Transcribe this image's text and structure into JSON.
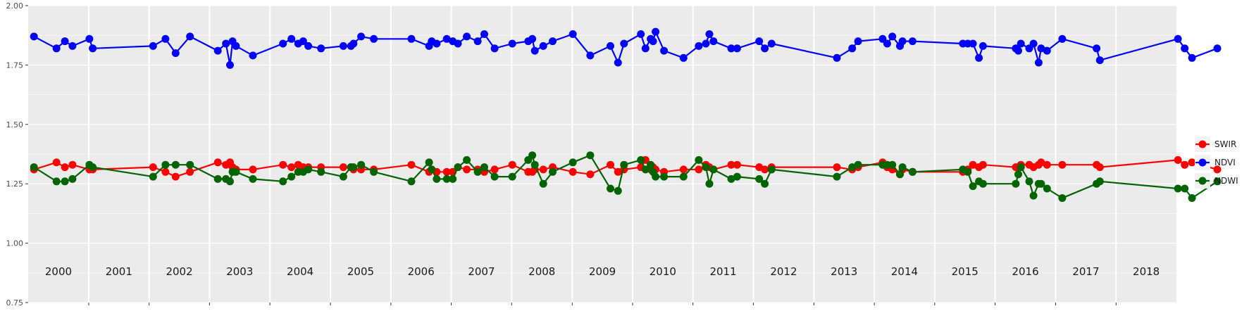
{
  "chart_data": {
    "type": "line",
    "title": "",
    "xlabel": "",
    "ylabel": "",
    "ylim": [
      0.75,
      2.0
    ],
    "xlim": [
      "2000-01-01",
      "2018-12-31"
    ],
    "y_ticks": [
      "0.75",
      "1.00",
      "1.25",
      "1.50",
      "1.75",
      "2.00"
    ],
    "year_labels": [
      "2000",
      "2001",
      "2002",
      "2003",
      "2004",
      "2005",
      "2006",
      "2007",
      "2008",
      "2009",
      "2010",
      "2011",
      "2012",
      "2013",
      "2014",
      "2015",
      "2016",
      "2017",
      "2018"
    ],
    "grid": true,
    "legend_position": "right",
    "colors": {
      "SWIR": "#ff0000",
      "NDVI": "#0000ff",
      "NDWI": "#006400",
      "panel": "#ebebeb"
    },
    "series": [
      {
        "name": "SWIR",
        "x": [
          "2000-02-05",
          "2000-06-20",
          "2000-08-10",
          "2000-09-25",
          "2001-01-05",
          "2001-01-25",
          "2002-01-25",
          "2002-04-10",
          "2002-06-10",
          "2002-09-05",
          "2003-02-20",
          "2003-04-10",
          "2003-05-05",
          "2003-05-20",
          "2003-06-10",
          "2003-09-20",
          "2004-03-20",
          "2004-05-10",
          "2004-06-20",
          "2004-07-20",
          "2004-08-20",
          "2004-11-05",
          "2005-03-20",
          "2005-05-05",
          "2005-05-20",
          "2005-07-05",
          "2005-09-20",
          "2006-05-05",
          "2006-08-20",
          "2006-09-05",
          "2006-10-05",
          "2006-12-05",
          "2007-01-10",
          "2007-02-10",
          "2007-04-05",
          "2007-06-10",
          "2007-07-20",
          "2007-09-20",
          "2008-01-05",
          "2008-04-10",
          "2008-05-05",
          "2008-05-20",
          "2008-07-10",
          "2008-09-05",
          "2009-01-05",
          "2009-04-20",
          "2009-08-20",
          "2009-10-05",
          "2009-11-10",
          "2010-02-20",
          "2010-03-20",
          "2010-04-20",
          "2010-05-05",
          "2010-05-20",
          "2010-07-10",
          "2010-11-05",
          "2011-02-05",
          "2011-03-20",
          "2011-04-10",
          "2011-05-05",
          "2011-08-20",
          "2011-09-25",
          "2012-02-05",
          "2012-03-10",
          "2012-04-20",
          "2013-05-20",
          "2013-08-20",
          "2013-09-25",
          "2014-02-20",
          "2014-03-20",
          "2014-04-20",
          "2014-06-05",
          "2014-06-20",
          "2014-08-20",
          "2015-06-20",
          "2015-07-20",
          "2015-08-20",
          "2015-09-25",
          "2015-10-20",
          "2016-05-05",
          "2016-05-20",
          "2016-06-05",
          "2016-07-25",
          "2016-08-20",
          "2016-09-20",
          "2016-10-05",
          "2016-11-10",
          "2017-02-10",
          "2017-09-05",
          "2017-09-25",
          "2019-01-10",
          "2019-02-20",
          "2019-04-05",
          "2019-09-05"
        ],
        "values": [
          1.31,
          1.34,
          1.32,
          1.33,
          1.31,
          1.31,
          1.32,
          1.3,
          1.28,
          1.3,
          1.34,
          1.33,
          1.34,
          1.32,
          1.31,
          1.31,
          1.33,
          1.32,
          1.33,
          1.32,
          1.32,
          1.32,
          1.32,
          1.32,
          1.31,
          1.31,
          1.31,
          1.33,
          1.3,
          1.31,
          1.3,
          1.3,
          1.3,
          1.32,
          1.31,
          1.31,
          1.3,
          1.31,
          1.33,
          1.3,
          1.3,
          1.31,
          1.31,
          1.32,
          1.3,
          1.29,
          1.33,
          1.3,
          1.31,
          1.32,
          1.35,
          1.31,
          1.32,
          1.31,
          1.3,
          1.31,
          1.31,
          1.33,
          1.32,
          1.31,
          1.33,
          1.33,
          1.32,
          1.31,
          1.32,
          1.32,
          1.31,
          1.32,
          1.34,
          1.32,
          1.31,
          1.29,
          1.31,
          1.3,
          1.3,
          1.31,
          1.33,
          1.32,
          1.33,
          1.32,
          1.32,
          1.33,
          1.33,
          1.32,
          1.33,
          1.34,
          1.33,
          1.33,
          1.33,
          1.32,
          1.35,
          1.33,
          1.34,
          1.31
        ]
      },
      {
        "name": "NDVI",
        "x": [
          "2000-02-05",
          "2000-06-20",
          "2000-08-10",
          "2000-09-25",
          "2001-01-05",
          "2001-01-25",
          "2002-01-25",
          "2002-04-10",
          "2002-06-10",
          "2002-09-05",
          "2003-02-20",
          "2003-04-10",
          "2003-05-05",
          "2003-05-20",
          "2003-06-10",
          "2003-09-20",
          "2004-03-20",
          "2004-05-10",
          "2004-06-20",
          "2004-07-20",
          "2004-08-20",
          "2004-11-05",
          "2005-03-20",
          "2005-05-05",
          "2005-05-20",
          "2005-07-05",
          "2005-09-20",
          "2006-05-05",
          "2006-08-20",
          "2006-09-05",
          "2006-10-05",
          "2006-12-05",
          "2007-01-10",
          "2007-02-10",
          "2007-04-05",
          "2007-06-10",
          "2007-07-20",
          "2007-09-20",
          "2008-01-05",
          "2008-04-10",
          "2008-05-05",
          "2008-05-20",
          "2008-07-10",
          "2008-09-05",
          "2009-01-05",
          "2009-04-20",
          "2009-08-20",
          "2009-10-05",
          "2009-11-10",
          "2010-02-20",
          "2010-03-20",
          "2010-04-20",
          "2010-05-05",
          "2010-05-20",
          "2010-07-10",
          "2010-11-05",
          "2011-02-05",
          "2011-03-20",
          "2011-04-10",
          "2011-05-05",
          "2011-08-20",
          "2011-09-25",
          "2012-02-05",
          "2012-03-10",
          "2012-04-20",
          "2013-05-20",
          "2013-08-20",
          "2013-09-25",
          "2014-02-20",
          "2014-03-20",
          "2014-04-20",
          "2014-06-05",
          "2014-06-20",
          "2014-08-20",
          "2015-06-20",
          "2015-07-20",
          "2015-08-20",
          "2015-09-25",
          "2015-10-20",
          "2016-05-05",
          "2016-05-20",
          "2016-06-05",
          "2016-07-25",
          "2016-08-20",
          "2016-09-20",
          "2016-10-05",
          "2016-11-10",
          "2017-02-10",
          "2017-09-05",
          "2017-09-25",
          "2019-01-10",
          "2019-02-20",
          "2019-04-05",
          "2019-09-05"
        ],
        "values": [
          1.87,
          1.82,
          1.85,
          1.83,
          1.86,
          1.82,
          1.83,
          1.86,
          1.8,
          1.87,
          1.81,
          1.84,
          1.75,
          1.85,
          1.83,
          1.79,
          1.84,
          1.86,
          1.84,
          1.85,
          1.83,
          1.82,
          1.83,
          1.83,
          1.84,
          1.87,
          1.86,
          1.86,
          1.83,
          1.85,
          1.84,
          1.86,
          1.85,
          1.84,
          1.87,
          1.85,
          1.88,
          1.82,
          1.84,
          1.85,
          1.86,
          1.81,
          1.83,
          1.85,
          1.88,
          1.79,
          1.83,
          1.76,
          1.84,
          1.88,
          1.82,
          1.86,
          1.85,
          1.89,
          1.81,
          1.78,
          1.83,
          1.84,
          1.88,
          1.85,
          1.82,
          1.82,
          1.85,
          1.82,
          1.84,
          1.78,
          1.82,
          1.85,
          1.86,
          1.84,
          1.87,
          1.83,
          1.85,
          1.85,
          1.84,
          1.84,
          1.84,
          1.78,
          1.83,
          1.82,
          1.81,
          1.84,
          1.82,
          1.84,
          1.76,
          1.82,
          1.81,
          1.86,
          1.82,
          1.77,
          1.86,
          1.82,
          1.78,
          1.82
        ]
      },
      {
        "name": "NDWI",
        "x": [
          "2000-02-05",
          "2000-06-20",
          "2000-08-10",
          "2000-09-25",
          "2001-01-05",
          "2001-01-25",
          "2002-01-25",
          "2002-04-10",
          "2002-06-10",
          "2002-09-05",
          "2003-02-20",
          "2003-04-10",
          "2003-05-05",
          "2003-05-20",
          "2003-06-10",
          "2003-09-20",
          "2004-03-20",
          "2004-05-10",
          "2004-06-20",
          "2004-07-20",
          "2004-08-20",
          "2004-11-05",
          "2005-03-20",
          "2005-05-05",
          "2005-05-20",
          "2005-07-05",
          "2005-09-20",
          "2006-05-05",
          "2006-08-20",
          "2006-09-05",
          "2006-10-05",
          "2006-12-05",
          "2007-01-10",
          "2007-02-10",
          "2007-04-05",
          "2007-06-10",
          "2007-07-20",
          "2007-09-20",
          "2008-01-05",
          "2008-04-10",
          "2008-05-05",
          "2008-05-20",
          "2008-07-10",
          "2008-09-05",
          "2009-01-05",
          "2009-04-20",
          "2009-08-20",
          "2009-10-05",
          "2009-11-10",
          "2010-02-20",
          "2010-03-20",
          "2010-04-20",
          "2010-05-05",
          "2010-05-20",
          "2010-07-10",
          "2010-11-05",
          "2011-02-05",
          "2011-03-20",
          "2011-04-10",
          "2011-05-05",
          "2011-08-20",
          "2011-09-25",
          "2012-02-05",
          "2012-03-10",
          "2012-04-20",
          "2013-05-20",
          "2013-08-20",
          "2013-09-25",
          "2014-02-20",
          "2014-03-20",
          "2014-04-20",
          "2014-06-05",
          "2014-06-20",
          "2014-08-20",
          "2015-06-20",
          "2015-07-20",
          "2015-08-20",
          "2015-09-25",
          "2015-10-20",
          "2016-05-05",
          "2016-05-20",
          "2016-06-05",
          "2016-07-25",
          "2016-08-20",
          "2016-09-20",
          "2016-10-05",
          "2016-11-10",
          "2017-02-10",
          "2017-09-05",
          "2017-09-25",
          "2019-01-10",
          "2019-02-20",
          "2019-04-05",
          "2019-09-05"
        ],
        "values": [
          1.32,
          1.26,
          1.26,
          1.27,
          1.33,
          1.32,
          1.28,
          1.33,
          1.33,
          1.33,
          1.27,
          1.27,
          1.26,
          1.3,
          1.3,
          1.27,
          1.26,
          1.28,
          1.3,
          1.3,
          1.31,
          1.3,
          1.28,
          1.32,
          1.32,
          1.33,
          1.3,
          1.26,
          1.34,
          1.31,
          1.27,
          1.27,
          1.27,
          1.32,
          1.35,
          1.3,
          1.32,
          1.28,
          1.28,
          1.35,
          1.37,
          1.33,
          1.25,
          1.3,
          1.34,
          1.37,
          1.23,
          1.22,
          1.33,
          1.35,
          1.31,
          1.33,
          1.3,
          1.28,
          1.28,
          1.28,
          1.35,
          1.32,
          1.25,
          1.31,
          1.27,
          1.28,
          1.27,
          1.25,
          1.31,
          1.28,
          1.32,
          1.33,
          1.33,
          1.33,
          1.33,
          1.29,
          1.32,
          1.3,
          1.31,
          1.3,
          1.24,
          1.26,
          1.25,
          1.25,
          1.29,
          1.32,
          1.26,
          1.2,
          1.25,
          1.25,
          1.23,
          1.19,
          1.25,
          1.26,
          1.23,
          1.23,
          1.19,
          1.26
        ]
      }
    ]
  }
}
